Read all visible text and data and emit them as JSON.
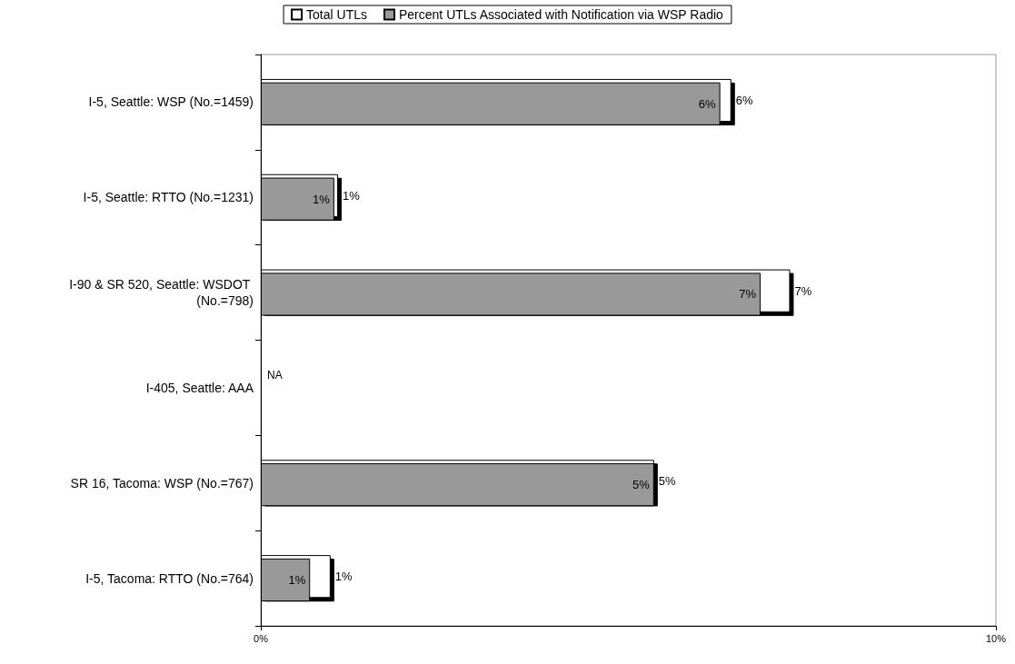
{
  "chart_data": {
    "type": "bar",
    "orientation": "horizontal",
    "categories": [
      "I-5, Seattle: WSP (No.=1459)",
      "I-5, Seattle: RTTO (No.=1231)",
      "I-90 & SR 520, Seattle: WSDOT (No.=798)",
      "I-405, Seattle: AAA",
      "SR 16, Tacoma: WSP (No.=767)",
      "I-5, Tacoma: RTTO (No.=764)"
    ],
    "series": [
      {
        "name": "Total UTLs",
        "color": "#ffffff",
        "values": [
          6.4,
          1.05,
          7.2,
          null,
          5.35,
          0.95
        ],
        "value_labels": [
          "6%",
          "1%",
          "7%",
          null,
          "5%",
          "1%"
        ]
      },
      {
        "name": "Percent UTLs Associated with Notification via WSP Radio",
        "color": "#999999",
        "values": [
          6.25,
          1.0,
          6.8,
          null,
          5.35,
          0.67
        ],
        "value_labels": [
          "6%",
          "1%",
          "7%",
          null,
          "5%",
          "1%"
        ]
      }
    ],
    "xlim": [
      0,
      10
    ],
    "xticks": [
      {
        "value": 0,
        "label": "0%"
      },
      {
        "value": 10,
        "label": "10%"
      }
    ],
    "annotations": [
      "NA"
    ],
    "grid": false,
    "legend": "top"
  }
}
